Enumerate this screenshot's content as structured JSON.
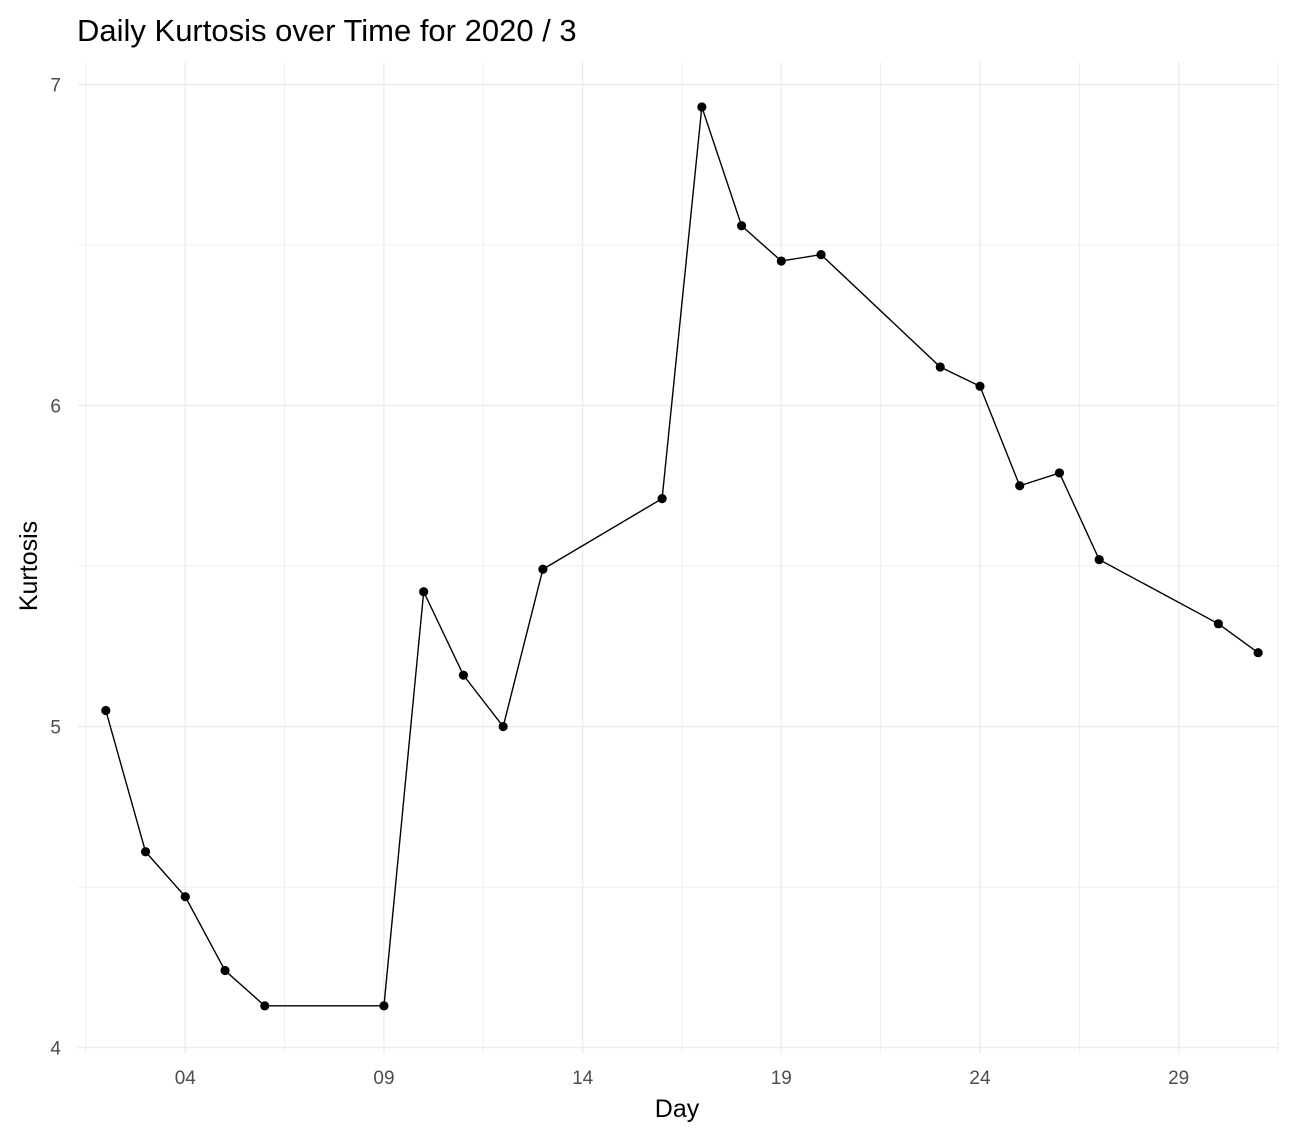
{
  "chart_data": {
    "type": "line",
    "title": "Daily Kurtosis over Time for 2020 / 3",
    "xlabel": "Day",
    "ylabel": "Kurtosis",
    "xlim": [
      1.3,
      31.5
    ],
    "ylim": [
      3.98,
      7.07
    ],
    "x_ticks": [
      4,
      9,
      14,
      19,
      24,
      29
    ],
    "x_tick_labels": [
      "04",
      "09",
      "14",
      "19",
      "24",
      "29"
    ],
    "y_ticks": [
      4,
      5,
      6,
      7
    ],
    "y_tick_labels": [
      "4",
      "5",
      "6",
      "7"
    ],
    "grid": true,
    "series": [
      {
        "x": [
          2,
          3,
          4,
          5,
          6,
          9,
          10,
          11,
          12,
          13,
          16,
          17,
          18,
          19,
          20,
          23,
          24,
          25,
          26,
          27,
          30,
          31
        ],
        "y": [
          5.05,
          4.61,
          4.47,
          4.24,
          4.13,
          4.13,
          5.42,
          5.16,
          5.0,
          5.49,
          5.71,
          6.93,
          6.56,
          6.45,
          6.47,
          6.12,
          6.06,
          5.75,
          5.79,
          5.52,
          5.32,
          5.23
        ]
      }
    ]
  }
}
